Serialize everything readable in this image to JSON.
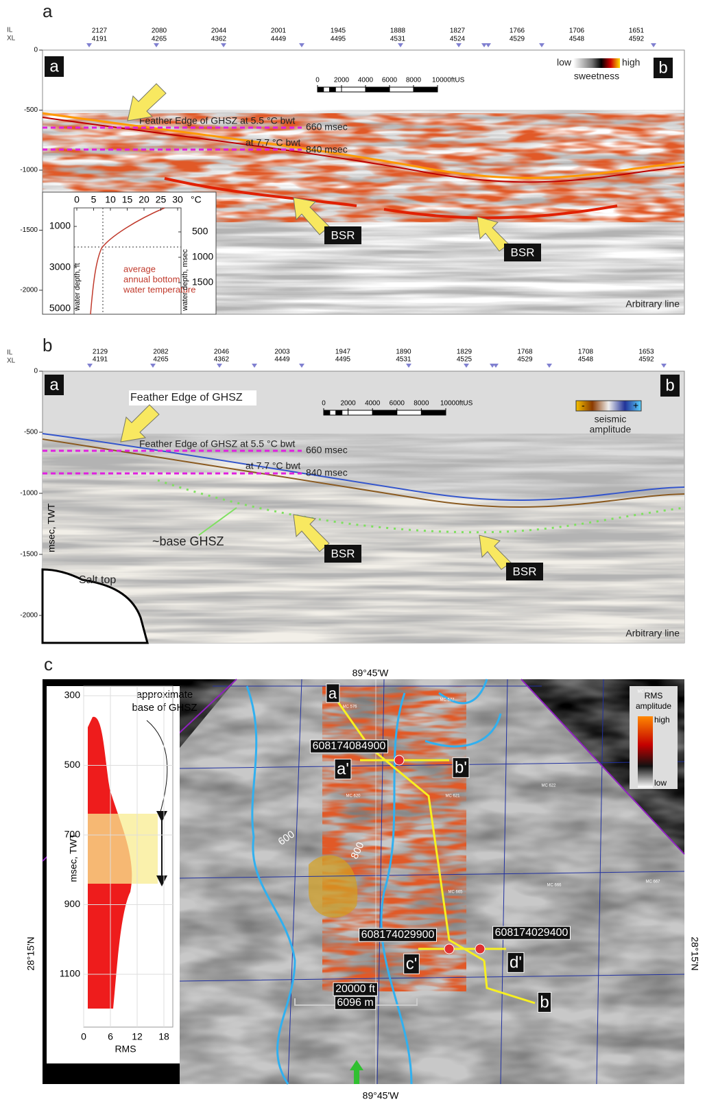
{
  "panel_a": {
    "label": "a",
    "il_label": "IL",
    "xl_label": "XL",
    "traces": [
      {
        "il": 2127,
        "xl": 4191
      },
      {
        "il": 2080,
        "xl": 4265
      },
      {
        "il": 2044,
        "xl": 4362
      },
      {
        "il": 2001,
        "xl": 4449
      },
      {
        "il": 1945,
        "xl": 4495
      },
      {
        "il": 1888,
        "xl": 4531
      },
      {
        "il": 1827,
        "xl": 4524
      },
      {
        "il": 1766,
        "xl": 4529
      },
      {
        "il": 1706,
        "xl": 4548
      },
      {
        "il": 1651,
        "xl": 4592
      }
    ],
    "yticks": [
      0,
      -500,
      -1000,
      -1500,
      -2000
    ],
    "end_a": "a",
    "end_b": "b",
    "colorbar": {
      "low": "low",
      "high": "high",
      "title": "sweetness"
    },
    "scale_ticks": [
      {
        "value": 0,
        "label": "0"
      },
      {
        "value": 2000,
        "label": "2000"
      },
      {
        "value": 4000,
        "label": "4000"
      },
      {
        "value": 6000,
        "label": "6000"
      },
      {
        "value": 8000,
        "label": "8000"
      },
      {
        "value": 10000,
        "label": "10000ftUS"
      }
    ],
    "feather_label": "Feather Edge of GHSZ at 5.5 °C bwt",
    "t660": "660 msec",
    "at77": "at 7.7 °C bwt",
    "t840": "840 msec",
    "bsr": [
      "BSR",
      "BSR"
    ],
    "line_label": "Arbitrary line",
    "inset": {
      "top_ticks": [
        0,
        5,
        10,
        15,
        20,
        25,
        30
      ],
      "top_unit": "°C",
      "left_ticks": [
        1000,
        3000,
        5000
      ],
      "right_ticks": [
        500,
        1000,
        1500
      ],
      "left_label": "water depth, ft",
      "right_label": "water depth, msec",
      "curve_label": [
        "average",
        "annual bottom",
        "water temperature"
      ]
    }
  },
  "panel_b": {
    "label": "b",
    "il_label": "IL",
    "xl_label": "XL",
    "traces": [
      {
        "il": 2129,
        "xl": 4191
      },
      {
        "il": 2082,
        "xl": 4265
      },
      {
        "il": 2046,
        "xl": 4362
      },
      {
        "il": 2003,
        "xl": 4449
      },
      {
        "il": 1947,
        "xl": 4495
      },
      {
        "il": 1890,
        "xl": 4531
      },
      {
        "il": 1829,
        "xl": 4525
      },
      {
        "il": 1768,
        "xl": 4529
      },
      {
        "il": 1708,
        "xl": 4548
      },
      {
        "il": 1653,
        "xl": 4592
      }
    ],
    "yticks": [
      0,
      -500,
      -1000,
      -1500,
      -2000
    ],
    "y_label": "msec, TWT",
    "end_a": "a",
    "end_b": "b",
    "colorbar": {
      "minus": "-",
      "plus": "+",
      "title": [
        "seismic",
        "amplitude"
      ]
    },
    "scale_ticks": [
      {
        "value": 0,
        "label": "0"
      },
      {
        "value": 2000,
        "label": "2000"
      },
      {
        "value": 4000,
        "label": "4000"
      },
      {
        "value": 6000,
        "label": "6000"
      },
      {
        "value": 8000,
        "label": "8000"
      },
      {
        "value": 10000,
        "label": "10000ftUS"
      }
    ],
    "feather_title": "Feather Edge of GHSZ",
    "feather_label": "Feather Edge of GHSZ at 5.5 °C bwt",
    "t660": "660 msec",
    "at77": "at 7.7 °C bwt",
    "t840": "840 msec",
    "base_label": "~base GHSZ",
    "salt_label": "Salt top",
    "bsr": [
      "BSR",
      "BSR"
    ],
    "line_label": "Arbitrary line"
  },
  "panel_c": {
    "label": "c",
    "lon_top": "89°45'W",
    "lon_bottom": "89°45'W",
    "lat_left": "28°15'N",
    "lat_right": "28°15'N",
    "plot": {
      "yticks": [
        300,
        500,
        700,
        900,
        1100
      ],
      "xticks": [
        0,
        6,
        12,
        18
      ],
      "x_label": "RMS",
      "y_label": "msec, TWT",
      "note": [
        "approximate",
        "base of GHSZ"
      ]
    },
    "legend": {
      "title": [
        "RMS",
        "amplitude"
      ],
      "high": "high",
      "low": "low"
    },
    "points": {
      "a": "a",
      "b": "b",
      "a_prime": "a'",
      "b_prime": "b'",
      "c_prime": "c'",
      "d_prime": "d'"
    },
    "wells": [
      "608174084900",
      "608174029900",
      "608174029400"
    ],
    "contours": [
      "600",
      "800"
    ],
    "scale": [
      "20000 ft",
      "6096 m"
    ],
    "blocks": [
      "MC 576",
      "MC 577",
      "MC 578",
      "MC 620",
      "MC 621",
      "MC 622",
      "MC 665",
      "MC 666",
      "MC 667"
    ]
  }
}
